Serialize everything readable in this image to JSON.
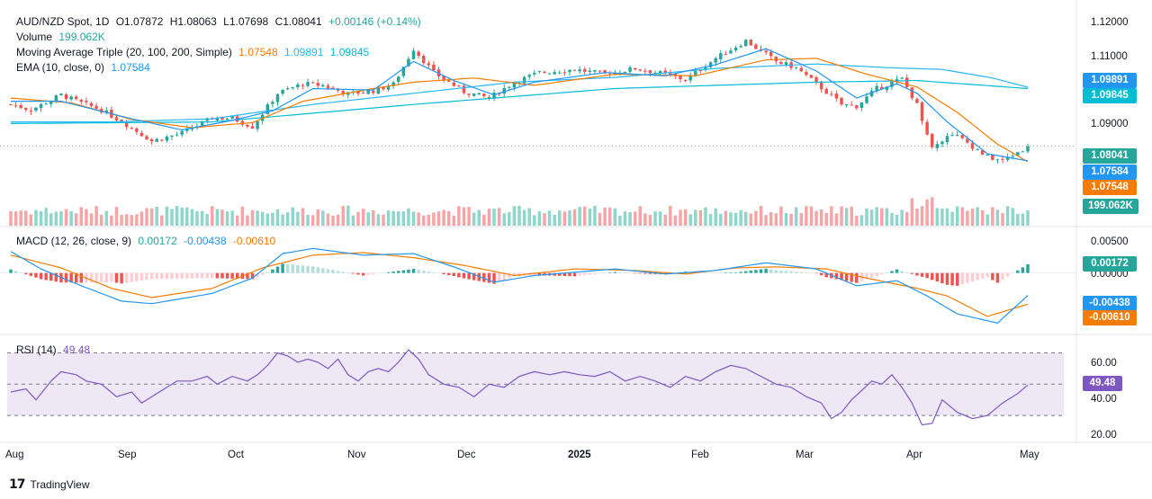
{
  "colors": {
    "up": "#26a69a",
    "down": "#ef5350",
    "vol_up": "#8ed6cb",
    "vol_down": "#f5a5a7",
    "ema": "#2196f3",
    "ma20": "#f57c00",
    "ma100": "#29b6f6",
    "ma200": "#00bcd4",
    "macd": "#2196f3",
    "signal": "#f57c00",
    "rsi": "#7e57c2",
    "rsi_band": "#ede7f6",
    "hist_pos_strong": "#26a69a",
    "hist_pos_weak": "#b2dfdb",
    "hist_neg_strong": "#ef5350",
    "hist_neg_weak": "#ffcdd2"
  },
  "legend": {
    "symbol": "AUD/NZD Spot, 1D",
    "ohlc_o": "O1.07872",
    "ohlc_h": "H1.08063",
    "ohlc_l": "L1.07698",
    "ohlc_c": "C1.08041",
    "change": "+0.00146 (+0.14%)",
    "volume_label": "Volume",
    "volume_value": "199.062K",
    "ma_label": "Moving Average Triple (20, 100, 200, Simple)",
    "ma20_value": "1.07548",
    "ma100_value": "1.09891",
    "ma200_value": "1.09845",
    "ema_label": "EMA (10, close, 0)",
    "ema_value": "1.07584",
    "macd_label": "MACD (12, 26, close, 9)",
    "macd_hist_value": "0.00172",
    "macd_value": "-0.00438",
    "signal_value": "-0.00610",
    "rsi_label": "RSI (14)",
    "rsi_value": "49.48"
  },
  "price_axis": [
    "1.12000",
    "1.11000",
    "1.09000"
  ],
  "macd_axis": [
    "0.00500",
    "0.00000"
  ],
  "rsi_axis": [
    "60.00",
    "40.00",
    "20.00"
  ],
  "pills": {
    "ma100": "1.09891",
    "ma200": "1.09845",
    "last": "1.08041",
    "ema": "1.07584",
    "ma20": "1.07548",
    "volume": "199.062K",
    "macd_hist": "0.00172",
    "macd": "-0.00438",
    "signal": "-0.00610",
    "rsi": "49.48"
  },
  "time_axis": [
    "Aug",
    "Sep",
    "Oct",
    "Nov",
    "Dec",
    "2025",
    "Feb",
    "Mar",
    "Apr",
    "May"
  ],
  "brand": "TradingView",
  "chart_data": {
    "type": "candlestick",
    "symbol": "AUD/NZD Spot, 1D",
    "price_range": [
      1.0735,
      1.1215
    ],
    "macd_range": [
      -0.0108,
      0.0068
    ],
    "rsi_range": [
      14,
      76
    ],
    "rsi_levels": [
      70,
      50,
      30
    ],
    "anchors": [
      {
        "t": 0,
        "close": 1.0935
      },
      {
        "t": 4,
        "close": 1.0918
      },
      {
        "t": 10,
        "close": 1.0965
      },
      {
        "t": 14,
        "close": 1.094
      },
      {
        "t": 18,
        "close": 1.0918
      },
      {
        "t": 23,
        "close": 1.0872
      },
      {
        "t": 28,
        "close": 1.082
      },
      {
        "t": 34,
        "close": 1.0845
      },
      {
        "t": 40,
        "close": 1.0892
      },
      {
        "t": 44,
        "close": 1.0892
      },
      {
        "t": 48,
        "close": 1.0865
      },
      {
        "t": 53,
        "close": 1.097
      },
      {
        "t": 58,
        "close": 1.1
      },
      {
        "t": 62,
        "close": 1.0995
      },
      {
        "t": 67,
        "close": 1.0968
      },
      {
        "t": 72,
        "close": 1.0978
      },
      {
        "t": 76,
        "close": 1.0998
      },
      {
        "t": 80,
        "close": 1.111
      },
      {
        "t": 84,
        "close": 1.1035
      },
      {
        "t": 90,
        "close": 1.0975
      },
      {
        "t": 95,
        "close": 1.0955
      },
      {
        "t": 100,
        "close": 1.1005
      },
      {
        "t": 105,
        "close": 1.1035
      },
      {
        "t": 112,
        "close": 1.1045
      },
      {
        "t": 118,
        "close": 1.103
      },
      {
        "t": 124,
        "close": 1.1048
      },
      {
        "t": 130,
        "close": 1.103
      },
      {
        "t": 134,
        "close": 1.1012
      },
      {
        "t": 140,
        "close": 1.108
      },
      {
        "t": 146,
        "close": 1.1135
      },
      {
        "t": 152,
        "close": 1.107
      },
      {
        "t": 156,
        "close": 1.105
      },
      {
        "t": 160,
        "close": 1.1
      },
      {
        "t": 165,
        "close": 1.0935
      },
      {
        "t": 168,
        "close": 1.093
      },
      {
        "t": 172,
        "close": 1.0985
      },
      {
        "t": 177,
        "close": 1.1015
      },
      {
        "t": 180,
        "close": 1.0935
      },
      {
        "t": 183,
        "close": 1.08
      },
      {
        "t": 187,
        "close": 1.0845
      },
      {
        "t": 190,
        "close": 1.0815
      },
      {
        "t": 194,
        "close": 1.077
      },
      {
        "t": 197,
        "close": 1.0758
      },
      {
        "t": 202,
        "close": 1.0804
      }
    ],
    "ma_lines": {
      "ma20": [
        [
          0,
          1.0955
        ],
        [
          12,
          1.094
        ],
        [
          24,
          1.0888
        ],
        [
          36,
          1.0862
        ],
        [
          48,
          1.0878
        ],
        [
          58,
          1.0945
        ],
        [
          72,
          1.0985
        ],
        [
          80,
          1.1005
        ],
        [
          92,
          1.1018
        ],
        [
          104,
          1.0995
        ],
        [
          120,
          1.103
        ],
        [
          136,
          1.1025
        ],
        [
          150,
          1.1075
        ],
        [
          160,
          1.108
        ],
        [
          170,
          1.103
        ],
        [
          180,
          1.099
        ],
        [
          188,
          1.091
        ],
        [
          196,
          1.081
        ],
        [
          202,
          1.0755
        ]
      ],
      "ma100": [
        [
          0,
          1.088
        ],
        [
          20,
          1.088
        ],
        [
          40,
          1.089
        ],
        [
          60,
          1.0935
        ],
        [
          80,
          1.097
        ],
        [
          100,
          1.1005
        ],
        [
          120,
          1.102
        ],
        [
          140,
          1.1048
        ],
        [
          160,
          1.1062
        ],
        [
          175,
          1.105
        ],
        [
          185,
          1.1045
        ],
        [
          195,
          1.1018
        ],
        [
          202,
          1.0989
        ]
      ],
      "ma200": [
        [
          0,
          1.0875
        ],
        [
          40,
          1.088
        ],
        [
          80,
          1.0935
        ],
        [
          120,
          1.0985
        ],
        [
          160,
          1.1005
        ],
        [
          180,
          1.101
        ],
        [
          202,
          1.0985
        ]
      ],
      "ema": [
        [
          0,
          1.0945
        ],
        [
          10,
          1.0945
        ],
        [
          24,
          1.089
        ],
        [
          34,
          1.0855
        ],
        [
          44,
          1.0885
        ],
        [
          52,
          1.0915
        ],
        [
          60,
          1.0985
        ],
        [
          72,
          1.098
        ],
        [
          80,
          1.107
        ],
        [
          88,
          1.101
        ],
        [
          96,
          1.0965
        ],
        [
          104,
          1.1005
        ],
        [
          118,
          1.1035
        ],
        [
          130,
          1.1025
        ],
        [
          140,
          1.106
        ],
        [
          150,
          1.111
        ],
        [
          160,
          1.104
        ],
        [
          168,
          1.0955
        ],
        [
          176,
          1.1
        ],
        [
          180,
          1.097
        ],
        [
          186,
          1.088
        ],
        [
          194,
          1.078
        ],
        [
          202,
          1.0758
        ]
      ]
    },
    "macd_lines": {
      "macd": [
        [
          0,
          0.0042
        ],
        [
          6,
          0.0008
        ],
        [
          14,
          -0.0025
        ],
        [
          22,
          -0.0055
        ],
        [
          28,
          -0.006
        ],
        [
          40,
          -0.004
        ],
        [
          48,
          -0.001
        ],
        [
          54,
          0.0038
        ],
        [
          60,
          0.0048
        ],
        [
          70,
          0.0035
        ],
        [
          80,
          0.0038
        ],
        [
          88,
          0.0012
        ],
        [
          96,
          -0.0018
        ],
        [
          104,
          -0.0005
        ],
        [
          120,
          0.0008
        ],
        [
          130,
          -0.0002
        ],
        [
          140,
          0.0005
        ],
        [
          150,
          0.002
        ],
        [
          160,
          0.0008
        ],
        [
          168,
          -0.0025
        ],
        [
          176,
          -0.0015
        ],
        [
          182,
          -0.0045
        ],
        [
          188,
          -0.008
        ],
        [
          196,
          -0.0098
        ],
        [
          202,
          -0.0044
        ]
      ],
      "signal": [
        [
          0,
          0.0035
        ],
        [
          10,
          0.001
        ],
        [
          20,
          -0.003
        ],
        [
          28,
          -0.0048
        ],
        [
          40,
          -0.003
        ],
        [
          50,
          0.001
        ],
        [
          60,
          0.0035
        ],
        [
          70,
          0.004
        ],
        [
          80,
          0.003
        ],
        [
          90,
          0.0015
        ],
        [
          100,
          -0.0005
        ],
        [
          112,
          0.0008
        ],
        [
          124,
          0.0005
        ],
        [
          134,
          -0.0002
        ],
        [
          144,
          0.001
        ],
        [
          152,
          0.0012
        ],
        [
          162,
          0.0008
        ],
        [
          170,
          -0.001
        ],
        [
          180,
          -0.003
        ],
        [
          186,
          -0.0045
        ],
        [
          194,
          -0.0085
        ],
        [
          202,
          -0.0061
        ]
      ]
    },
    "rsi": [
      [
        0,
        45
      ],
      [
        3,
        47
      ],
      [
        5,
        40
      ],
      [
        8,
        52
      ],
      [
        10,
        58
      ],
      [
        13,
        56
      ],
      [
        15,
        52
      ],
      [
        18,
        50
      ],
      [
        21,
        42
      ],
      [
        24,
        45
      ],
      [
        26,
        38
      ],
      [
        28,
        42
      ],
      [
        31,
        48
      ],
      [
        33,
        52
      ],
      [
        36,
        52
      ],
      [
        39,
        55
      ],
      [
        41,
        50
      ],
      [
        44,
        55
      ],
      [
        47,
        52
      ],
      [
        49,
        56
      ],
      [
        51,
        62
      ],
      [
        53,
        70
      ],
      [
        55,
        68
      ],
      [
        57,
        64
      ],
      [
        59,
        66
      ],
      [
        61,
        64
      ],
      [
        63,
        60
      ],
      [
        65,
        66
      ],
      [
        67,
        56
      ],
      [
        69,
        52
      ],
      [
        71,
        58
      ],
      [
        73,
        60
      ],
      [
        75,
        58
      ],
      [
        77,
        64
      ],
      [
        79,
        72
      ],
      [
        81,
        66
      ],
      [
        83,
        56
      ],
      [
        86,
        50
      ],
      [
        89,
        48
      ],
      [
        92,
        42
      ],
      [
        95,
        50
      ],
      [
        98,
        48
      ],
      [
        101,
        55
      ],
      [
        104,
        58
      ],
      [
        107,
        56
      ],
      [
        110,
        58
      ],
      [
        113,
        56
      ],
      [
        116,
        55
      ],
      [
        119,
        58
      ],
      [
        122,
        52
      ],
      [
        125,
        55
      ],
      [
        128,
        52
      ],
      [
        131,
        48
      ],
      [
        134,
        55
      ],
      [
        137,
        52
      ],
      [
        140,
        58
      ],
      [
        143,
        62
      ],
      [
        146,
        60
      ],
      [
        149,
        55
      ],
      [
        152,
        50
      ],
      [
        155,
        48
      ],
      [
        158,
        42
      ],
      [
        161,
        38
      ],
      [
        163,
        28
      ],
      [
        165,
        32
      ],
      [
        167,
        40
      ],
      [
        169,
        46
      ],
      [
        171,
        52
      ],
      [
        173,
        50
      ],
      [
        175,
        56
      ],
      [
        177,
        48
      ],
      [
        179,
        38
      ],
      [
        181,
        24
      ],
      [
        183,
        25
      ],
      [
        185,
        40
      ],
      [
        188,
        32
      ],
      [
        191,
        28
      ],
      [
        194,
        30
      ],
      [
        197,
        38
      ],
      [
        200,
        44
      ],
      [
        202,
        49.48
      ]
    ],
    "volume_ratio_range": [
      0.35,
      1.0
    ],
    "volume_last": "199.062K"
  }
}
